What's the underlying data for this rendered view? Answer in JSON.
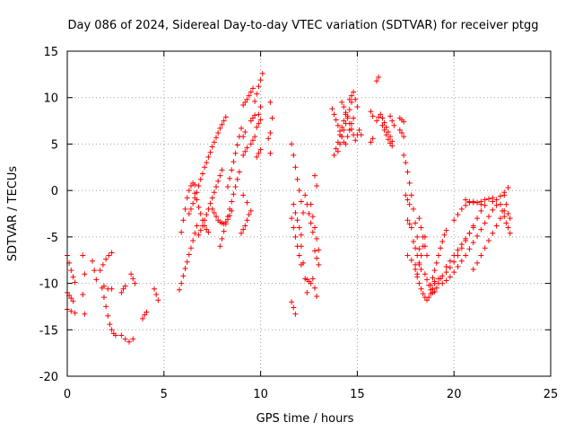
{
  "chart_data": {
    "type": "scatter",
    "title": "Day 086 of 2024, Sidereal Day-to-day VTEC variation (SDTVAR) for receiver ptgg",
    "xlabel": "GPS time / hours",
    "ylabel": "SDTVAR / TECUs",
    "xlim": [
      0,
      25
    ],
    "ylim": [
      -20,
      15
    ],
    "xticks": [
      0,
      5,
      10,
      15,
      20,
      25
    ],
    "yticks": [
      -20,
      -15,
      -10,
      -5,
      0,
      5,
      10,
      15
    ],
    "grid": true,
    "marker": "+",
    "color": "#ff0000",
    "segments": [
      {
        "x": [
          0.0,
          0.1,
          0.2,
          0.3,
          0.4
        ],
        "y": [
          -7.0,
          -7.8,
          -8.6,
          -9.3,
          -9.9
        ]
      },
      {
        "x": [
          0.0,
          0.1,
          0.2,
          0.3
        ],
        "y": [
          -11.0,
          -11.3,
          -11.6,
          -11.9
        ]
      },
      {
        "x": [
          0.0,
          0.2,
          0.4
        ],
        "y": [
          -12.8,
          -13.0,
          -13.2
        ]
      },
      {
        "x": [
          0.8,
          0.9
        ],
        "y": [
          -7.0,
          -9.0
        ]
      },
      {
        "x": [
          0.8,
          0.9
        ],
        "y": [
          -11.2,
          -13.3
        ]
      },
      {
        "x": [
          1.3,
          1.4,
          1.5
        ],
        "y": [
          -7.6,
          -8.6,
          -9.6
        ]
      },
      {
        "x": [
          1.7,
          1.85,
          2.0,
          2.15,
          2.3
        ],
        "y": [
          -8.6,
          -8.0,
          -7.4,
          -7.0,
          -6.7
        ]
      },
      {
        "x": [
          1.8,
          1.9,
          2.0,
          2.1,
          2.2,
          2.3,
          2.4,
          2.5
        ],
        "y": [
          -10.5,
          -11.5,
          -12.5,
          -13.5,
          -14.4,
          -15.0,
          -15.4,
          -15.6
        ]
      },
      {
        "x": [
          1.9,
          2.1,
          2.3
        ],
        "y": [
          -10.3,
          -10.6,
          -10.6
        ]
      },
      {
        "x": [
          2.8,
          3.0,
          3.2,
          3.4
        ],
        "y": [
          -15.6,
          -16.0,
          -16.3,
          -16.0
        ]
      },
      {
        "x": [
          2.8,
          2.9,
          3.0
        ],
        "y": [
          -11.0,
          -10.6,
          -10.3
        ]
      },
      {
        "x": [
          3.3,
          3.4,
          3.5
        ],
        "y": [
          -9.0,
          -9.5,
          -10.0
        ]
      },
      {
        "x": [
          3.9,
          4.0,
          4.1
        ],
        "y": [
          -13.8,
          -13.4,
          -13.1
        ]
      },
      {
        "x": [
          4.5,
          4.6,
          4.7
        ],
        "y": [
          -10.6,
          -11.2,
          -11.8
        ]
      },
      {
        "x": [
          5.8,
          5.9,
          6.0,
          6.1,
          6.2,
          6.3,
          6.4,
          6.5,
          6.6,
          6.7
        ],
        "y": [
          -10.7,
          -10.0,
          -9.2,
          -8.4,
          -7.7,
          -6.9,
          -6.2,
          -5.4,
          -4.6,
          -3.8
        ]
      },
      {
        "x": [
          5.9,
          6.0,
          6.1,
          6.2,
          6.3,
          6.4,
          6.5,
          6.6
        ],
        "y": [
          -4.5,
          -3.2,
          -2.0,
          -0.8,
          0.0,
          0.5,
          0.8,
          0.6
        ]
      },
      {
        "x": [
          6.6,
          6.7,
          6.8,
          6.9,
          7.0,
          7.1,
          7.2,
          7.3
        ],
        "y": [
          -0.3,
          -1.0,
          -1.8,
          -2.5,
          -3.2,
          -3.8,
          -4.2,
          -4.5
        ]
      },
      {
        "x": [
          6.3,
          6.4,
          6.5,
          6.6,
          6.7,
          6.8,
          6.9,
          7.0,
          7.1,
          7.2,
          7.3,
          7.4,
          7.5,
          7.6,
          7.7,
          7.8,
          7.9,
          8.0,
          8.1,
          8.2
        ],
        "y": [
          -2.5,
          -2.0,
          -1.4,
          -0.8,
          -0.2,
          0.5,
          1.2,
          1.8,
          2.5,
          3.0,
          3.6,
          4.1,
          4.7,
          5.2,
          5.7,
          6.2,
          6.7,
          7.1,
          7.5,
          7.9
        ]
      },
      {
        "x": [
          6.8,
          6.9,
          7.0,
          7.1,
          7.2,
          7.3,
          7.4,
          7.5,
          7.6,
          7.7,
          7.8,
          7.9,
          8.0
        ],
        "y": [
          -4.8,
          -4.3,
          -3.8,
          -3.2,
          -2.6,
          -2.0,
          -1.4,
          -0.8,
          -0.2,
          0.4,
          1.0,
          1.6,
          2.2
        ]
      },
      {
        "x": [
          7.5,
          7.6,
          7.7,
          7.8,
          7.9,
          8.0,
          8.1,
          8.2,
          8.3,
          8.4,
          8.5
        ],
        "y": [
          -2.0,
          -2.4,
          -2.8,
          -3.2,
          -3.4,
          -3.5,
          -3.6,
          -3.4,
          -3.1,
          -2.7,
          -2.2
        ]
      },
      {
        "x": [
          7.9,
          8.0,
          8.1,
          8.2,
          8.3,
          8.4,
          8.5,
          8.6,
          8.7,
          8.8,
          8.9
        ],
        "y": [
          -6.0,
          -5.2,
          -4.4,
          -3.6,
          -2.8,
          -2.0,
          -1.2,
          -0.4,
          0.4,
          1.2,
          2.0
        ]
      },
      {
        "x": [
          8.3,
          8.4,
          8.5,
          8.6,
          8.7,
          8.8,
          8.9,
          9.0
        ],
        "y": [
          0.4,
          1.3,
          2.2,
          3.1,
          4.0,
          4.9,
          5.8,
          6.7
        ]
      },
      {
        "x": [
          9.0,
          9.1,
          9.2,
          9.3,
          9.4
        ],
        "y": [
          -4.6,
          -4.2,
          -3.8,
          -3.2,
          -2.6
        ]
      },
      {
        "x": [
          9.1,
          9.3,
          9.5
        ],
        "y": [
          -0.5,
          -1.3,
          -2.2
        ]
      },
      {
        "x": [
          9.1,
          9.2,
          9.3
        ],
        "y": [
          3.8,
          4.2,
          4.6
        ]
      },
      {
        "x": [
          9.1,
          9.2,
          9.3
        ],
        "y": [
          9.2,
          9.5,
          9.8
        ]
      },
      {
        "x": [
          9.1,
          9.2
        ],
        "y": [
          5.8,
          6.3
        ]
      },
      {
        "x": [
          9.4,
          9.5,
          9.6
        ],
        "y": [
          10.2,
          10.6,
          11.0
        ]
      },
      {
        "x": [
          9.5,
          9.6,
          9.7
        ],
        "y": [
          5.0,
          5.4,
          5.8
        ]
      },
      {
        "x": [
          9.5,
          9.6,
          9.7
        ],
        "y": [
          7.5,
          7.8,
          8.1
        ]
      },
      {
        "x": [
          9.7,
          9.8,
          9.9,
          10.0,
          10.1
        ],
        "y": [
          9.6,
          10.4,
          11.2,
          11.9,
          12.6
        ]
      },
      {
        "x": [
          9.8,
          9.9,
          10.0
        ],
        "y": [
          3.6,
          4.0,
          4.4
        ]
      },
      {
        "x": [
          9.8,
          9.9,
          10.0
        ],
        "y": [
          6.8,
          7.2,
          7.6
        ]
      },
      {
        "x": [
          9.9,
          10.0
        ],
        "y": [
          8.2,
          9.0
        ]
      },
      {
        "x": [
          10.5,
          10.6
        ],
        "y": [
          9.5,
          7.8
        ]
      },
      {
        "x": [
          10.4,
          10.5
        ],
        "y": [
          5.6,
          6.2
        ]
      },
      {
        "x": [
          10.5
        ],
        "y": [
          4.0
        ]
      },
      {
        "x": [
          11.6,
          11.7,
          11.8,
          11.9,
          12.0,
          12.1,
          12.2
        ],
        "y": [
          5.0,
          3.8,
          2.5,
          1.2,
          0.0,
          -1.2,
          -2.4
        ]
      },
      {
        "x": [
          11.6,
          11.7,
          11.8,
          11.9,
          12.0,
          12.1
        ],
        "y": [
          -3.0,
          -4.0,
          -5.0,
          -6.0,
          -7.0,
          -8.0
        ]
      },
      {
        "x": [
          11.7,
          11.8,
          11.9,
          12.0,
          12.1
        ],
        "y": [
          -1.5,
          -2.4,
          -3.2,
          -4.0,
          -4.8
        ]
      },
      {
        "x": [
          11.6,
          11.7,
          11.8
        ],
        "y": [
          -12.0,
          -12.6,
          -13.3
        ]
      },
      {
        "x": [
          12.1,
          12.2,
          12.3,
          12.4
        ],
        "y": [
          -6.0,
          -7.8,
          -9.5,
          -11.0
        ]
      },
      {
        "x": [
          12.3,
          12.4,
          12.5,
          12.6,
          12.7
        ],
        "y": [
          -0.5,
          -1.5,
          -2.5,
          -3.5,
          -4.5
        ]
      },
      {
        "x": [
          12.4,
          12.5,
          12.6
        ],
        "y": [
          -9.6,
          -9.8,
          -10.0
        ]
      },
      {
        "x": [
          12.6,
          12.7,
          12.8,
          12.9,
          13.0
        ],
        "y": [
          -1.5,
          -2.8,
          -4.0,
          -5.2,
          -6.4
        ]
      },
      {
        "x": [
          12.7,
          12.8,
          12.9
        ],
        "y": [
          -9.5,
          -10.5,
          -11.4
        ]
      },
      {
        "x": [
          12.8,
          12.9,
          13.0
        ],
        "y": [
          -6.5,
          -7.3,
          -8.0
        ]
      },
      {
        "x": [
          12.8,
          12.9
        ],
        "y": [
          1.6,
          0.5
        ]
      },
      {
        "x": [
          13.7,
          13.8,
          13.9,
          14.0,
          14.1,
          14.2,
          14.3
        ],
        "y": [
          8.8,
          8.2,
          7.6,
          7.0,
          6.4,
          5.8,
          5.2
        ]
      },
      {
        "x": [
          13.8,
          13.9,
          14.0,
          14.1,
          14.2,
          14.3,
          14.4
        ],
        "y": [
          3.8,
          4.5,
          5.2,
          6.0,
          6.8,
          7.5,
          8.2
        ]
      },
      {
        "x": [
          14.0,
          14.1,
          14.2,
          14.3,
          14.4,
          14.5,
          14.6,
          14.7
        ],
        "y": [
          4.2,
          5.0,
          5.8,
          6.5,
          7.2,
          8.0,
          8.7,
          9.5
        ]
      },
      {
        "x": [
          14.2,
          14.3,
          14.4,
          14.5,
          14.6,
          14.7,
          14.8,
          14.9
        ],
        "y": [
          9.5,
          9.0,
          8.4,
          7.8,
          7.2,
          6.6,
          6.0,
          5.4
        ]
      },
      {
        "x": [
          14.4,
          14.5,
          14.6,
          14.7,
          14.8
        ],
        "y": [
          5.0,
          5.8,
          6.5,
          7.2,
          7.8
        ]
      },
      {
        "x": [
          14.6,
          14.7,
          14.8,
          14.9,
          15.0
        ],
        "y": [
          9.8,
          10.2,
          10.6,
          9.8,
          9.0
        ]
      },
      {
        "x": [
          15.0,
          15.1,
          15.2
        ],
        "y": [
          6.0,
          6.5,
          6.0
        ]
      },
      {
        "x": [
          15.7,
          15.8
        ],
        "y": [
          8.5,
          8.0
        ]
      },
      {
        "x": [
          15.7,
          15.8
        ],
        "y": [
          5.2,
          5.6
        ]
      },
      {
        "x": [
          16.0,
          16.1
        ],
        "y": [
          11.8,
          12.2
        ]
      },
      {
        "x": [
          16.0,
          16.1,
          16.2,
          16.3,
          16.4,
          16.5,
          16.6,
          16.7,
          16.8
        ],
        "y": [
          7.5,
          7.9,
          8.2,
          7.8,
          7.3,
          6.8,
          6.3,
          5.8,
          5.3
        ]
      },
      {
        "x": [
          16.3,
          16.4,
          16.5,
          16.6,
          16.7,
          16.8
        ],
        "y": [
          7.0,
          6.5,
          6.0,
          5.5,
          5.1,
          4.8
        ]
      },
      {
        "x": [
          16.7,
          16.8,
          16.9
        ],
        "y": [
          8.0,
          7.5,
          7.0
        ]
      },
      {
        "x": [
          17.2,
          17.3,
          17.4
        ],
        "y": [
          6.5,
          6.2,
          5.8
        ]
      },
      {
        "x": [
          17.2,
          17.3,
          17.4
        ],
        "y": [
          7.8,
          7.6,
          7.4
        ]
      },
      {
        "x": [
          17.4,
          17.5,
          17.6,
          17.7,
          17.8,
          17.9,
          18.0,
          18.1,
          18.2
        ],
        "y": [
          3.8,
          3.0,
          2.0,
          0.8,
          -0.5,
          -2.0,
          -3.5,
          -5.0,
          -6.3
        ]
      },
      {
        "x": [
          17.5,
          17.6,
          17.7
        ],
        "y": [
          -0.5,
          -1.0,
          -1.5
        ]
      },
      {
        "x": [
          17.6,
          17.7,
          17.8
        ],
        "y": [
          -3.2,
          -3.6,
          -4.0
        ]
      },
      {
        "x": [
          17.6,
          17.8,
          18.0
        ],
        "y": [
          -7.0,
          -7.5,
          -8.0
        ]
      },
      {
        "x": [
          17.9,
          18.0,
          18.1,
          18.2,
          18.3
        ],
        "y": [
          -5.5,
          -6.2,
          -7.0,
          -7.8,
          -8.5
        ]
      },
      {
        "x": [
          18.0,
          18.1,
          18.2,
          18.3,
          18.4,
          18.5,
          18.6,
          18.7,
          18.8,
          18.9,
          19.0
        ],
        "y": [
          -8.5,
          -9.3,
          -10.0,
          -10.6,
          -11.1,
          -11.5,
          -11.8,
          -11.5,
          -11.1,
          -10.6,
          -10.0
        ]
      },
      {
        "x": [
          18.1,
          18.2,
          18.3,
          18.4,
          18.5
        ],
        "y": [
          -9.0,
          -8.0,
          -7.0,
          -6.0,
          -5.0
        ]
      },
      {
        "x": [
          18.2,
          18.3,
          18.4,
          18.5,
          18.6
        ],
        "y": [
          -3.0,
          -4.0,
          -5.0,
          -6.0,
          -7.0
        ]
      },
      {
        "x": [
          18.5,
          18.6,
          18.7,
          18.8,
          18.9,
          19.0,
          19.1,
          19.2,
          19.3
        ],
        "y": [
          -9.0,
          -9.6,
          -10.2,
          -10.7,
          -11.0,
          -10.9,
          -10.5,
          -10.0,
          -9.5
        ]
      },
      {
        "x": [
          18.8,
          18.9,
          19.0,
          19.1,
          19.2,
          19.3,
          19.4,
          19.5,
          19.6
        ],
        "y": [
          -10.2,
          -9.4,
          -8.6,
          -7.8,
          -7.0,
          -6.2,
          -5.5,
          -4.8,
          -4.3
        ]
      },
      {
        "x": [
          19.0,
          19.2,
          19.4,
          19.6,
          19.8,
          20.0,
          20.2,
          20.4,
          20.6,
          20.8,
          21.0,
          21.2,
          21.4
        ],
        "y": [
          -9.8,
          -9.5,
          -9.2,
          -8.8,
          -8.3,
          -7.7,
          -7.0,
          -6.2,
          -5.4,
          -4.6,
          -3.8,
          -3.0,
          -2.2
        ]
      },
      {
        "x": [
          19.4,
          19.6,
          19.8,
          20.0,
          20.2,
          20.4,
          20.6,
          20.8,
          21.0,
          21.2,
          21.4,
          21.6,
          21.8,
          22.0,
          22.2
        ],
        "y": [
          -10.0,
          -9.7,
          -9.3,
          -8.8,
          -8.2,
          -7.6,
          -7.0,
          -6.3,
          -5.6,
          -4.9,
          -4.2,
          -3.5,
          -2.8,
          -2.1,
          -1.6
        ]
      },
      {
        "x": [
          19.6,
          19.8,
          20.0,
          20.2,
          20.4,
          20.6,
          20.8,
          21.0
        ],
        "y": [
          -8.2,
          -7.6,
          -7.0,
          -6.4,
          -5.8,
          -5.2,
          -4.6,
          -4.0
        ]
      },
      {
        "x": [
          20.0,
          20.2,
          20.4,
          20.6,
          20.8,
          21.0,
          21.2,
          21.4,
          21.6
        ],
        "y": [
          -3.2,
          -2.6,
          -2.0,
          -1.6,
          -1.3,
          -1.2,
          -1.3,
          -1.5,
          -1.6
        ]
      },
      {
        "x": [
          20.6,
          20.8,
          21.0,
          21.2,
          21.4,
          21.6,
          21.8,
          22.0
        ],
        "y": [
          -1.0,
          -1.2,
          -1.3,
          -1.3,
          -1.2,
          -1.0,
          -0.9,
          -0.8
        ]
      },
      {
        "x": [
          21.0,
          21.2,
          21.4,
          21.6,
          21.8,
          22.0,
          22.2,
          22.4,
          22.6
        ],
        "y": [
          -8.5,
          -7.8,
          -7.0,
          -6.2,
          -5.4,
          -4.6,
          -3.8,
          -3.0,
          -2.2
        ]
      },
      {
        "x": [
          22.0,
          22.2,
          22.4,
          22.6,
          22.8
        ],
        "y": [
          -1.2,
          -1.0,
          -0.6,
          -0.2,
          0.3
        ]
      },
      {
        "x": [
          22.4,
          22.5,
          22.6,
          22.7,
          22.8,
          22.9
        ],
        "y": [
          -1.5,
          -2.2,
          -2.8,
          -3.5,
          -4.0,
          -4.6
        ]
      },
      {
        "x": [
          22.6,
          22.7,
          22.8,
          22.9
        ],
        "y": [
          -0.5,
          -1.5,
          -2.5,
          -3.0
        ]
      }
    ]
  }
}
